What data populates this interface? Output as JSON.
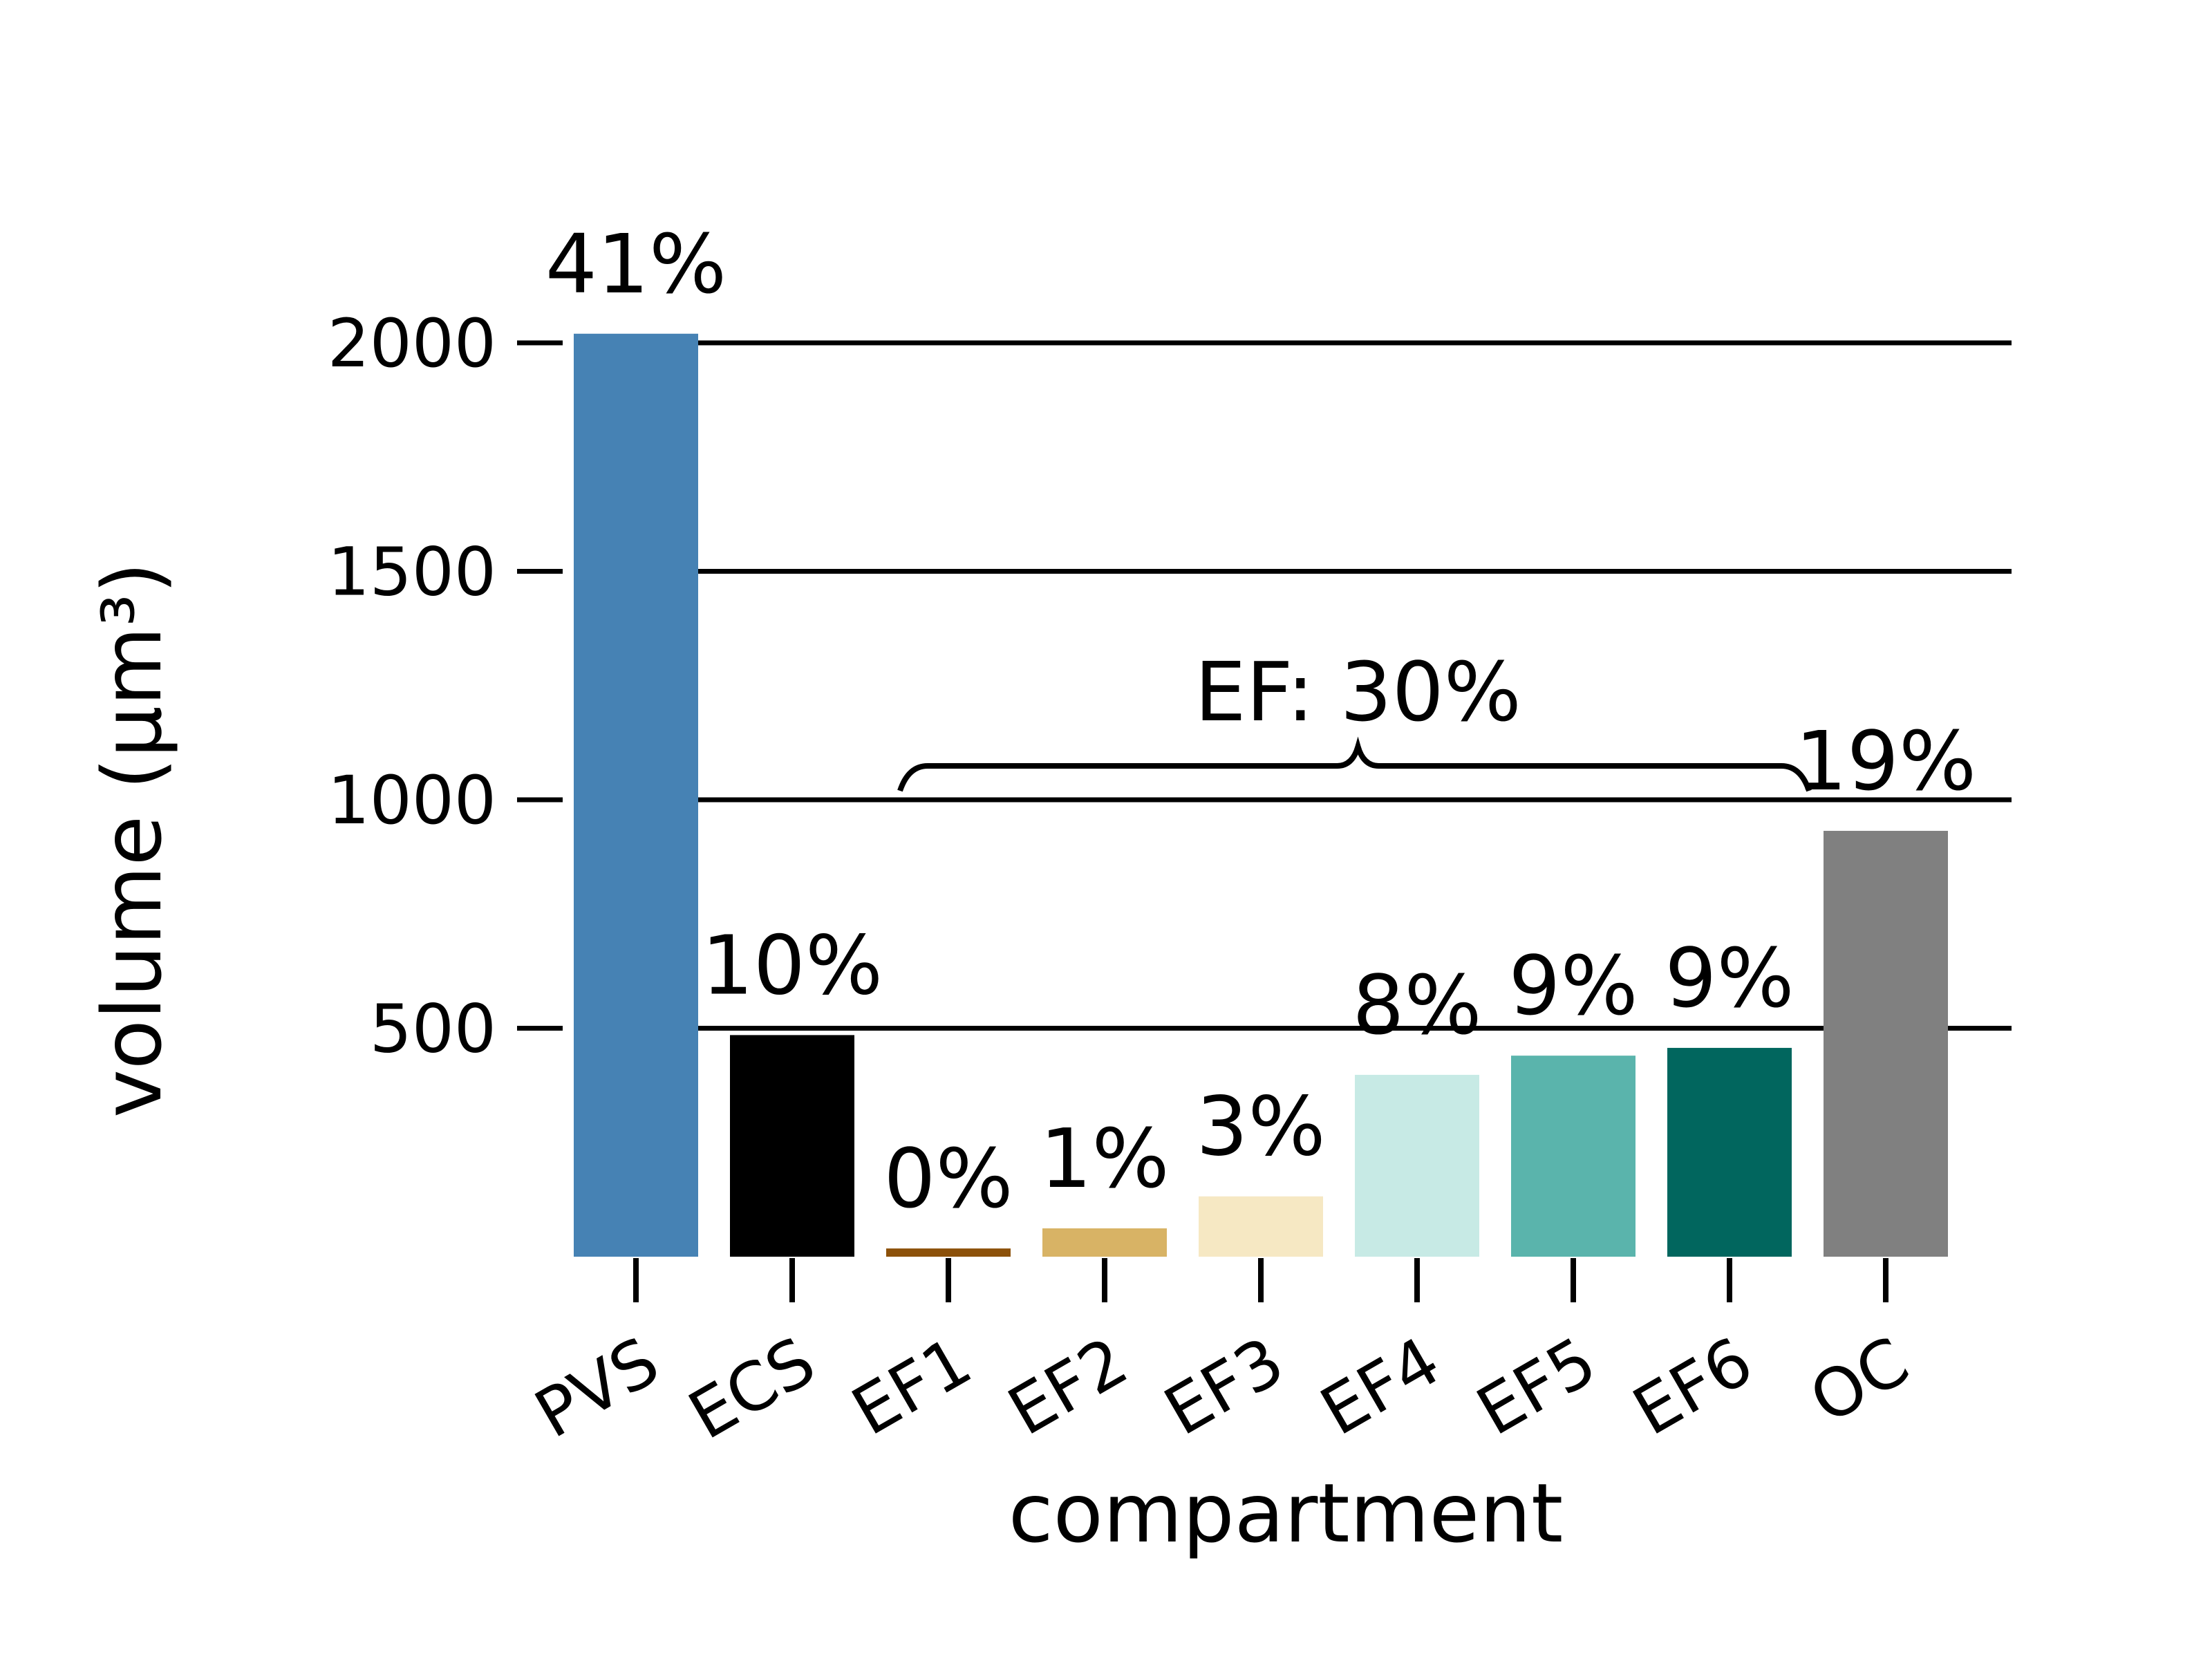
{
  "chart_data": {
    "type": "bar",
    "xlabel": "compartment",
    "ylabel": "volume (µm³)",
    "ylim": [
      0,
      2000
    ],
    "yticks": [
      500,
      1000,
      1500,
      2000
    ],
    "grid": "horizontal",
    "categories": [
      "PVS",
      "ECS",
      "EF1",
      "EF2",
      "EF3",
      "EF4",
      "EF5",
      "EF6",
      "OC"
    ],
    "values": [
      2020,
      485,
      18,
      62,
      132,
      398,
      440,
      457,
      932
    ],
    "percent_labels": [
      "41%",
      "10%",
      "0%",
      "1%",
      "3%",
      "8%",
      "9%",
      "9%",
      "19%"
    ],
    "colors": [
      "#4682b4",
      "#000000",
      "#8c510a",
      "#d8b365",
      "#f6e8c3",
      "#c7eae5",
      "#5ab4ac",
      "#01665e",
      "#808080"
    ],
    "bracket": {
      "label": "EF: 30%",
      "from": "EF1",
      "to": "EF6"
    }
  }
}
